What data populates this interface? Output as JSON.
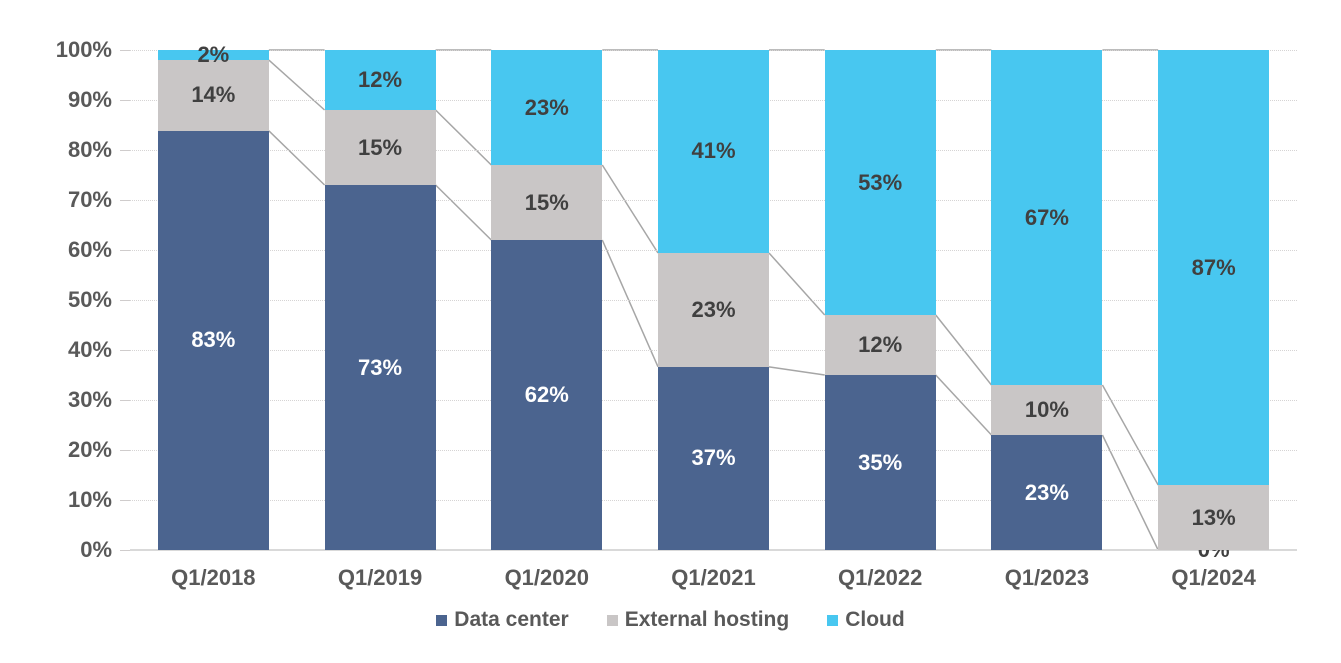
{
  "chart_data": {
    "type": "bar",
    "variant": "stacked-100",
    "title": "",
    "categories": [
      "Q1/2018",
      "Q1/2019",
      "Q1/2020",
      "Q1/2021",
      "Q1/2022",
      "Q1/2023",
      "Q1/2024"
    ],
    "series": [
      {
        "name": "Data center",
        "color": "#4b648f",
        "label_color": "#ffffff",
        "values": [
          83,
          73,
          62,
          37,
          35,
          23,
          0
        ]
      },
      {
        "name": "External hosting",
        "color": "#c9c6c6",
        "label_color": "#404040",
        "values": [
          14,
          15,
          15,
          23,
          12,
          10,
          13
        ]
      },
      {
        "name": "Cloud",
        "color": "#48c7f0",
        "label_color": "#404040",
        "values": [
          2,
          12,
          23,
          41,
          53,
          67,
          87
        ]
      }
    ],
    "value_suffix": "%",
    "y_axis": {
      "min": 0,
      "max": 100,
      "step": 10,
      "tick_labels": [
        "0%",
        "10%",
        "20%",
        "30%",
        "40%",
        "50%",
        "60%",
        "70%",
        "80%",
        "90%",
        "100%"
      ],
      "grid": true
    },
    "legend": {
      "position": "bottom",
      "entries": [
        "Data center",
        "External hosting",
        "Cloud"
      ]
    },
    "colors": {
      "axis_text": "#595959",
      "gridline": "#d6d4d4",
      "baseline": "#d9d9d9",
      "connector": "#a6a6a6"
    }
  }
}
